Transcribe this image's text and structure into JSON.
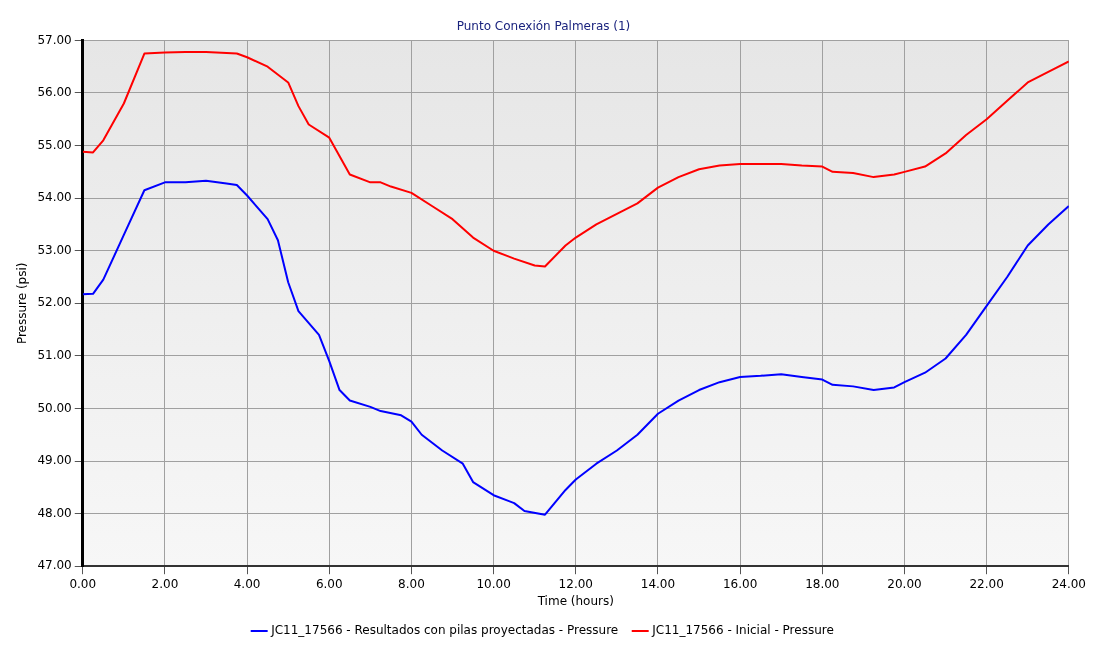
{
  "chart_data": {
    "type": "line",
    "title": "Punto Conexión Palmeras (1)",
    "xlabel": "Time (hours)",
    "ylabel": "Pressure (psi)",
    "xlim": [
      0,
      24
    ],
    "ylim": [
      47,
      57
    ],
    "xticks": [
      {
        "value": 0,
        "label": "0.00"
      },
      {
        "value": 2,
        "label": "2.00"
      },
      {
        "value": 4,
        "label": "4.00"
      },
      {
        "value": 6,
        "label": "6.00"
      },
      {
        "value": 8,
        "label": "8.00"
      },
      {
        "value": 10,
        "label": "10.00"
      },
      {
        "value": 12,
        "label": "12.00"
      },
      {
        "value": 14,
        "label": "14.00"
      },
      {
        "value": 16,
        "label": "16.00"
      },
      {
        "value": 18,
        "label": "18.00"
      },
      {
        "value": 20,
        "label": "20.00"
      },
      {
        "value": 22,
        "label": "22.00"
      },
      {
        "value": 24,
        "label": "24.00"
      }
    ],
    "yticks": [
      {
        "value": 47,
        "label": "47.00"
      },
      {
        "value": 48,
        "label": "48.00"
      },
      {
        "value": 49,
        "label": "49.00"
      },
      {
        "value": 50,
        "label": "50.00"
      },
      {
        "value": 51,
        "label": "51.00"
      },
      {
        "value": 52,
        "label": "52.00"
      },
      {
        "value": 53,
        "label": "53.00"
      },
      {
        "value": 54,
        "label": "54.00"
      },
      {
        "value": 55,
        "label": "55.00"
      },
      {
        "value": 56,
        "label": "56.00"
      },
      {
        "value": 57,
        "label": "57.00"
      }
    ],
    "grid": true,
    "legend": "bottom",
    "line_style": "solid",
    "series": [
      {
        "name": "JC11_17566 - Resultados con pilas proyectadas - Pressure",
        "color": "#0000ff",
        "x": [
          0,
          0.25,
          0.5,
          1,
          1.5,
          2,
          2.5,
          3,
          3.5,
          3.75,
          4,
          4.5,
          4.75,
          5,
          5.25,
          5.75,
          6,
          6.25,
          6.5,
          7,
          7.25,
          7.75,
          8,
          8.25,
          8.75,
          9.25,
          9.5,
          10,
          10.5,
          10.75,
          11.25,
          11.75,
          12,
          12.5,
          13,
          13.5,
          14,
          14.5,
          15,
          15.5,
          16,
          16.5,
          17,
          17.5,
          18,
          18.25,
          18.75,
          19.25,
          19.75,
          20,
          20.5,
          21,
          21.5,
          22,
          22.5,
          23,
          23.5,
          24
        ],
        "values": [
          52.17,
          52.18,
          52.45,
          53.3,
          54.15,
          54.3,
          54.3,
          54.33,
          54.28,
          54.25,
          54.05,
          53.6,
          53.2,
          52.4,
          51.85,
          51.4,
          50.9,
          50.35,
          50.15,
          50.03,
          49.95,
          49.87,
          49.75,
          49.5,
          49.2,
          48.95,
          48.6,
          48.35,
          48.2,
          48.05,
          47.98,
          48.45,
          48.65,
          48.95,
          49.2,
          49.5,
          49.9,
          50.15,
          50.35,
          50.5,
          50.6,
          50.62,
          50.65,
          50.6,
          50.55,
          50.45,
          50.42,
          50.35,
          50.4,
          50.5,
          50.68,
          50.95,
          51.4,
          51.95,
          52.5,
          53.1,
          53.5,
          53.85
        ]
      },
      {
        "name": "JC11_17566 - Inicial - Pressure",
        "color": "#ff0000",
        "x": [
          0,
          0.25,
          0.5,
          1,
          1.5,
          2,
          2.5,
          3,
          3.5,
          3.75,
          4,
          4.5,
          5,
          5.25,
          5.5,
          6,
          6.5,
          7,
          7.25,
          7.5,
          8,
          8.5,
          9,
          9.5,
          10,
          10.5,
          11,
          11.25,
          11.75,
          12,
          12.5,
          13,
          13.5,
          14,
          14.5,
          15,
          15.5,
          16,
          16.5,
          17,
          17.5,
          18,
          18.25,
          18.75,
          19.25,
          19.75,
          20,
          20.5,
          21,
          21.5,
          22,
          22.5,
          23,
          23.5,
          24
        ],
        "values": [
          54.88,
          54.87,
          55.1,
          55.8,
          56.75,
          56.77,
          56.78,
          56.78,
          56.76,
          56.75,
          56.68,
          56.5,
          56.2,
          55.75,
          55.4,
          55.15,
          54.45,
          54.3,
          54.3,
          54.22,
          54.1,
          53.85,
          53.6,
          53.25,
          53.0,
          52.85,
          52.72,
          52.7,
          53.1,
          53.25,
          53.5,
          53.7,
          53.9,
          54.2,
          54.4,
          54.55,
          54.62,
          54.65,
          54.65,
          54.65,
          54.62,
          54.6,
          54.5,
          54.48,
          54.4,
          54.45,
          54.5,
          54.6,
          54.85,
          55.2,
          55.5,
          55.85,
          56.2,
          56.4,
          56.6
        ]
      }
    ]
  }
}
